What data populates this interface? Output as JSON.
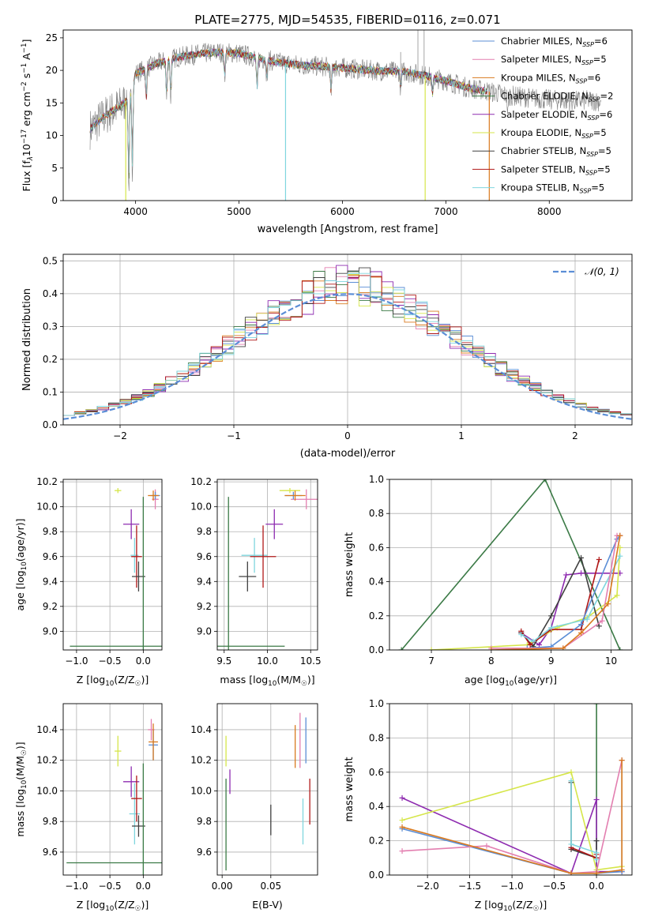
{
  "figure": {
    "title": "PLATE=2775, MJD=54535, FIBERID=0116, z=0.071"
  },
  "colors": {
    "Chabrier MILES": "#5b8ed6",
    "Salpeter MILES": "#e37fb0",
    "Kroupa MILES": "#d97a1f",
    "Chabrier ELODIE": "#3b7a46",
    "Salpeter ELODIE": "#8e2bb0",
    "Kroupa ELODIE": "#d6e64a",
    "Chabrier STELIB": "#404040",
    "Salpeter STELIB": "#b01818",
    "Kroupa STELIB": "#7fd6de",
    "data": "#808080",
    "gauss": "#5b8ed6"
  },
  "chart_data": [
    {
      "id": "spectrum",
      "type": "line",
      "title": "",
      "xlabel": "wavelength [Angstrom, rest frame]",
      "ylabel": "Flux [f",
      "ylabel_sub": "λ",
      "ylabel_rest": "10",
      "ylabel_sup1": "−17",
      "ylabel_rest2": " erg cm",
      "ylabel_sup2": "−2",
      "ylabel_rest3": " s",
      "ylabel_sup3": "−1",
      "ylabel_rest4": " A",
      "ylabel_sup4": "−1",
      "ylabel_end": "]",
      "xlim": [
        3300,
        8800
      ],
      "ylim": [
        0,
        26.2
      ],
      "xticks": [
        4000,
        5000,
        6000,
        7000,
        8000
      ],
      "yticks": [
        0,
        5,
        10,
        15,
        20,
        25
      ],
      "grid": false,
      "legend_placement": "top-right",
      "legend": [
        {
          "name": "Chabrier MILES",
          "label": "Chabrier MILES, N",
          "n": "=6"
        },
        {
          "name": "Salpeter MILES",
          "label": "Salpeter MILES, N",
          "n": "=5"
        },
        {
          "name": "Kroupa MILES",
          "label": "Kroupa MILES, N",
          "n": "=6"
        },
        {
          "name": "Chabrier ELODIE",
          "label": "Chabrier ELODIE, N",
          "n": "=2"
        },
        {
          "name": "Salpeter ELODIE",
          "label": "Salpeter ELODIE, N",
          "n": "=6"
        },
        {
          "name": "Kroupa ELODIE",
          "label": "Kroupa ELODIE, N",
          "n": "=5"
        },
        {
          "name": "Chabrier STELIB",
          "label": "Chabrier STELIB, N",
          "n": "=5"
        },
        {
          "name": "Salpeter STELIB",
          "label": "Salpeter STELIB, N",
          "n": "=5"
        },
        {
          "name": "Kroupa STELIB",
          "label": "Kroupa STELIB, N",
          "n": "=5"
        }
      ],
      "legend_sub": "SSP",
      "continuum": [
        [
          3560,
          11
        ],
        [
          3700,
          13
        ],
        [
          3850,
          14.5
        ],
        [
          3950,
          16
        ],
        [
          4000,
          19.5
        ],
        [
          4200,
          21
        ],
        [
          4400,
          22
        ],
        [
          4600,
          22.5
        ],
        [
          4800,
          22.8
        ],
        [
          5000,
          22.6
        ],
        [
          5200,
          21.8
        ],
        [
          5400,
          21.2
        ],
        [
          5600,
          20.8
        ],
        [
          5800,
          20.6
        ],
        [
          6000,
          20.4
        ],
        [
          6200,
          20.1
        ],
        [
          6400,
          19.9
        ],
        [
          6600,
          19.8
        ],
        [
          6800,
          19.2
        ],
        [
          7000,
          18.4
        ],
        [
          7200,
          17.4
        ],
        [
          7400,
          16.8
        ],
        [
          7600,
          16.2
        ],
        [
          7800,
          15.8
        ],
        [
          8000,
          15.5
        ],
        [
          8200,
          15.3
        ],
        [
          8400,
          15.4
        ],
        [
          8500,
          15.2
        ]
      ],
      "absorptions": [
        [
          3934,
          14
        ],
        [
          3969,
          13
        ],
        [
          4102,
          5
        ],
        [
          4300,
          6
        ],
        [
          4340,
          6
        ],
        [
          4861,
          4
        ],
        [
          5175,
          5
        ],
        [
          5270,
          3
        ],
        [
          5890,
          4
        ],
        [
          6563,
          2.5
        ],
        [
          6870,
          3
        ],
        [
          7600,
          3
        ]
      ],
      "drop_lines": [
        {
          "name": "Kroupa ELODIE",
          "x": 3905
        },
        {
          "name": "Kroupa STELIB",
          "x": 5450
        },
        {
          "name": "Kroupa ELODIE",
          "x": 6800
        },
        {
          "name": "Kroupa MILES",
          "x": 7420
        }
      ]
    },
    {
      "id": "residuals",
      "type": "line",
      "xlabel": "(data-model)/error",
      "ylabel": "Normed distribution",
      "xlim": [
        -2.5,
        2.5
      ],
      "ylim": [
        0,
        0.52
      ],
      "xticks": [
        -2,
        -1,
        0,
        1,
        2
      ],
      "yticks": [
        0.0,
        0.1,
        0.2,
        0.3,
        0.4,
        0.5
      ],
      "grid": true,
      "legend_placement": "top-right",
      "legend_label": "𝒩(0, 1)",
      "bin_width": 0.1
    },
    {
      "id": "age-vs-Z",
      "type": "scatter",
      "xlabel": "Z [log",
      "xlabel_sub": "10",
      "xlabel_rest": "(Z/Z",
      "xlabel_sub2": "☉",
      "xlabel_end": ")]",
      "ylabel": "age  [log",
      "ylabel_sub": "10",
      "ylabel_rest": "(age/yr)]",
      "xlim": [
        -1.2,
        0.28
      ],
      "ylim": [
        8.85,
        10.22
      ],
      "xticks": [
        -1.0,
        -0.5,
        0.0
      ],
      "yticks": [
        9.0,
        9.2,
        9.4,
        9.6,
        9.8,
        10.0,
        10.2
      ],
      "grid": true,
      "points": [
        {
          "name": "Kroupa ELODIE",
          "x": -0.38,
          "y": 10.13,
          "xerr": 0.05,
          "yerr": 0.02
        },
        {
          "name": "Salpeter ELODIE",
          "x": -0.18,
          "y": 9.86,
          "xerr": 0.12,
          "yerr": 0.12
        },
        {
          "name": "Kroupa STELIB",
          "x": -0.13,
          "y": 9.61,
          "xerr": 0.06,
          "yerr": 0.14
        },
        {
          "name": "Salpeter STELIB",
          "x": -0.1,
          "y": 9.6,
          "xerr": 0.08,
          "yerr": 0.25
        },
        {
          "name": "Chabrier STELIB",
          "x": -0.07,
          "y": 9.44,
          "xerr": 0.1,
          "yerr": 0.12
        },
        {
          "name": "Chabrier ELODIE",
          "x": 0.0,
          "y": 8.88,
          "xerr": 1.1,
          "yerr": 1.2
        },
        {
          "name": "Salpeter MILES",
          "x": 0.18,
          "y": 10.06,
          "xerr": 0.05,
          "yerr": 0.08
        },
        {
          "name": "Chabrier MILES",
          "x": 0.18,
          "y": 10.09,
          "xerr": 0.07,
          "yerr": 0.03
        },
        {
          "name": "Kroupa MILES",
          "x": 0.15,
          "y": 10.09,
          "xerr": 0.08,
          "yerr": 0.04
        }
      ]
    },
    {
      "id": "age-vs-mass",
      "type": "scatter",
      "xlabel": "mass [log",
      "xlabel_sub": "10",
      "xlabel_rest": "(M/M",
      "xlabel_sub2": "☉",
      "xlabel_end": ")]",
      "xlim": [
        9.42,
        10.58
      ],
      "ylim": [
        8.85,
        10.22
      ],
      "xticks": [
        9.5,
        10.0,
        10.5
      ],
      "yticks": [
        9.0,
        9.2,
        9.4,
        9.6,
        9.8,
        10.0,
        10.2
      ],
      "grid": true,
      "points": [
        {
          "name": "Kroupa ELODIE",
          "x": 10.26,
          "y": 10.13,
          "xerr": 0.12,
          "yerr": 0.02
        },
        {
          "name": "Salpeter ELODIE",
          "x": 10.08,
          "y": 9.86,
          "xerr": 0.1,
          "yerr": 0.12
        },
        {
          "name": "Kroupa STELIB",
          "x": 9.85,
          "y": 9.61,
          "xerr": 0.15,
          "yerr": 0.14
        },
        {
          "name": "Salpeter STELIB",
          "x": 9.95,
          "y": 9.6,
          "xerr": 0.15,
          "yerr": 0.25
        },
        {
          "name": "Chabrier STELIB",
          "x": 9.77,
          "y": 9.44,
          "xerr": 0.1,
          "yerr": 0.12
        },
        {
          "name": "Chabrier ELODIE",
          "x": 9.55,
          "y": 8.88,
          "xerr": 0.65,
          "yerr": 1.2
        },
        {
          "name": "Salpeter MILES",
          "x": 10.45,
          "y": 10.06,
          "xerr": 0.18,
          "yerr": 0.08
        },
        {
          "name": "Chabrier MILES",
          "x": 10.3,
          "y": 10.09,
          "xerr": 0.1,
          "yerr": 0.03
        },
        {
          "name": "Kroupa MILES",
          "x": 10.32,
          "y": 10.09,
          "xerr": 0.12,
          "yerr": 0.04
        }
      ]
    },
    {
      "id": "weight-vs-age",
      "type": "line",
      "xlabel": "age  [log",
      "xlabel_sub": "10",
      "xlabel_rest": "(age/yr)]",
      "ylabel": "mass weight",
      "xlim": [
        6.3,
        10.35
      ],
      "ylim": [
        0,
        1.0
      ],
      "xticks": [
        7,
        8,
        9,
        10
      ],
      "yticks": [
        0.0,
        0.2,
        0.4,
        0.6,
        0.8,
        1.0
      ],
      "grid": true,
      "series": [
        {
          "name": "Chabrier ELODIE",
          "x": [
            6.5,
            8.9,
            10.15
          ],
          "y": [
            0.0,
            1.0,
            0.0
          ]
        },
        {
          "name": "Salpeter ELODIE",
          "x": [
            8.5,
            8.8,
            9.0,
            9.25,
            9.5,
            10.15
          ],
          "y": [
            0.1,
            0.03,
            0.13,
            0.44,
            0.45,
            0.45
          ]
        },
        {
          "name": "Kroupa ELODIE",
          "x": [
            7.0,
            8.6,
            9.1,
            9.6,
            10.1,
            10.15
          ],
          "y": [
            0.0,
            0.03,
            0.13,
            0.19,
            0.32,
            0.6
          ]
        },
        {
          "name": "Chabrier STELIB",
          "x": [
            8.5,
            8.7,
            9.0,
            9.5,
            9.8
          ],
          "y": [
            0.1,
            0.02,
            0.2,
            0.54,
            0.14
          ]
        },
        {
          "name": "Salpeter STELIB",
          "x": [
            8.5,
            8.65,
            9.0,
            9.5,
            9.8
          ],
          "y": [
            0.11,
            0.03,
            0.12,
            0.12,
            0.53
          ]
        },
        {
          "name": "Kroupa STELIB",
          "x": [
            8.5,
            8.7,
            9.0,
            9.6,
            10.15
          ],
          "y": [
            0.09,
            0.05,
            0.13,
            0.18,
            0.55
          ]
        },
        {
          "name": "Chabrier MILES",
          "x": [
            8.6,
            9.0,
            9.5,
            10.1,
            10.15
          ],
          "y": [
            0.01,
            0.02,
            0.15,
            0.65,
            0.67
          ]
        },
        {
          "name": "Salpeter MILES",
          "x": [
            8.0,
            9.2,
            9.85,
            10.1,
            10.15
          ],
          "y": [
            0.01,
            0.01,
            0.17,
            0.67,
            0.67
          ]
        },
        {
          "name": "Kroupa MILES",
          "x": [
            8.0,
            9.2,
            9.5,
            9.95,
            10.15
          ],
          "y": [
            0.0,
            0.01,
            0.1,
            0.27,
            0.67
          ]
        }
      ]
    },
    {
      "id": "mass-vs-Z",
      "type": "scatter",
      "xlabel": "Z [log",
      "xlabel_sub": "10",
      "xlabel_rest": "(Z/Z",
      "xlabel_sub2": "☉",
      "xlabel_end": ")]",
      "ylabel": "mass [log",
      "ylabel_sub": "10",
      "ylabel_rest": "(M/M",
      "ylabel_sub2": "☉",
      "ylabel_end": ")]",
      "xlim": [
        -1.2,
        0.28
      ],
      "ylim": [
        9.45,
        10.57
      ],
      "xticks": [
        -1.0,
        -0.5,
        0.0
      ],
      "yticks": [
        9.6,
        9.8,
        10.0,
        10.2,
        10.4
      ],
      "grid": true,
      "points": [
        {
          "name": "Kroupa ELODIE",
          "x": -0.38,
          "y": 10.26,
          "xerr": 0.05,
          "yerr": 0.1
        },
        {
          "name": "Salpeter ELODIE",
          "x": -0.18,
          "y": 10.06,
          "xerr": 0.12,
          "yerr": 0.1
        },
        {
          "name": "Kroupa STELIB",
          "x": -0.13,
          "y": 9.85,
          "xerr": 0.08,
          "yerr": 0.2
        },
        {
          "name": "Salpeter STELIB",
          "x": -0.1,
          "y": 9.95,
          "xerr": 0.08,
          "yerr": 0.15
        },
        {
          "name": "Chabrier STELIB",
          "x": -0.07,
          "y": 9.77,
          "xerr": 0.1,
          "yerr": 0.07
        },
        {
          "name": "Chabrier ELODIE",
          "x": 0.0,
          "y": 9.53,
          "xerr": 1.15,
          "yerr": 0.65
        },
        {
          "name": "Salpeter MILES",
          "x": 0.12,
          "y": 10.4,
          "xerr": 0.05,
          "yerr": 0.07
        },
        {
          "name": "Chabrier MILES",
          "x": 0.15,
          "y": 10.3,
          "xerr": 0.07,
          "yerr": 0.1
        },
        {
          "name": "Kroupa MILES",
          "x": 0.15,
          "y": 10.32,
          "xerr": 0.07,
          "yerr": 0.12
        }
      ]
    },
    {
      "id": "mass-vs-ebv",
      "type": "scatter",
      "xlabel": "E(B-V)",
      "xlim": [
        -0.005,
        0.098
      ],
      "ylim": [
        9.45,
        10.57
      ],
      "xticks": [
        0.0,
        0.05
      ],
      "yticks": [
        9.6,
        9.8,
        10.0,
        10.2,
        10.4
      ],
      "grid": true,
      "points": [
        {
          "name": "Kroupa ELODIE",
          "x": 0.004,
          "y": 10.26,
          "xerr": 0.0,
          "yerr": 0.1
        },
        {
          "name": "Salpeter ELODIE",
          "x": 0.008,
          "y": 10.06,
          "xerr": 0.0,
          "yerr": 0.08
        },
        {
          "name": "Chabrier ELODIE",
          "x": 0.004,
          "y": 9.78,
          "xerr": 0.0,
          "yerr": 0.3
        },
        {
          "name": "Chabrier STELIB",
          "x": 0.05,
          "y": 9.81,
          "xerr": 0.0,
          "yerr": 0.1
        },
        {
          "name": "Kroupa MILES",
          "x": 0.075,
          "y": 10.29,
          "xerr": 0.0,
          "yerr": 0.14
        },
        {
          "name": "Salpeter MILES",
          "x": 0.08,
          "y": 10.33,
          "xerr": 0.0,
          "yerr": 0.18
        },
        {
          "name": "Chabrier MILES",
          "x": 0.086,
          "y": 10.33,
          "xerr": 0.0,
          "yerr": 0.15
        },
        {
          "name": "Kroupa STELIB",
          "x": 0.083,
          "y": 9.8,
          "xerr": 0.0,
          "yerr": 0.15
        },
        {
          "name": "Salpeter STELIB",
          "x": 0.09,
          "y": 9.93,
          "xerr": 0.0,
          "yerr": 0.15
        }
      ]
    },
    {
      "id": "weight-vs-Z",
      "type": "line",
      "xlabel": "Z [log",
      "xlabel_sub": "10",
      "xlabel_rest": "(Z/Z",
      "xlabel_sub2": "☉",
      "xlabel_end": ")]",
      "ylabel": "mass weight",
      "xlim": [
        -2.45,
        0.42
      ],
      "ylim": [
        0,
        1.0
      ],
      "xticks": [
        -2.0,
        -1.5,
        -1.0,
        -0.5,
        0.0
      ],
      "yticks": [
        0.0,
        0.2,
        0.4,
        0.6,
        0.8,
        1.0
      ],
      "grid": true,
      "series": [
        {
          "name": "Chabrier ELODIE",
          "x": [
            0.0,
            0.0
          ],
          "y": [
            1.0,
            0.0
          ]
        },
        {
          "name": "Salpeter ELODIE",
          "x": [
            -2.3,
            -0.3,
            0.0,
            0.0,
            0.3
          ],
          "y": [
            0.45,
            0.01,
            0.44,
            0.02,
            0.02
          ]
        },
        {
          "name": "Kroupa ELODIE",
          "x": [
            -2.3,
            -0.3,
            0.0,
            0.3
          ],
          "y": [
            0.32,
            0.6,
            0.03,
            0.05
          ]
        },
        {
          "name": "Chabrier STELIB",
          "x": [
            -0.3,
            -0.3,
            0.0,
            0.0
          ],
          "y": [
            0.54,
            0.15,
            0.1,
            0.2
          ]
        },
        {
          "name": "Salpeter STELIB",
          "x": [
            -0.3,
            0.0,
            0.0
          ],
          "y": [
            0.16,
            0.1,
            0.12
          ]
        },
        {
          "name": "Kroupa STELIB",
          "x": [
            -0.3,
            -0.3,
            0.0,
            0.0
          ],
          "y": [
            0.55,
            0.18,
            0.13,
            0.09
          ]
        },
        {
          "name": "Chabrier MILES",
          "x": [
            -2.3,
            -0.3,
            0.0,
            0.3,
            0.3
          ],
          "y": [
            0.27,
            0.01,
            0.01,
            0.02,
            0.67
          ]
        },
        {
          "name": "Salpeter MILES",
          "x": [
            -2.3,
            -1.3,
            -0.3,
            0.0,
            0.3
          ],
          "y": [
            0.14,
            0.17,
            0.01,
            0.02,
            0.67
          ]
        },
        {
          "name": "Kroupa MILES",
          "x": [
            -2.3,
            -0.3,
            0.0,
            0.3,
            0.3
          ],
          "y": [
            0.28,
            0.01,
            0.01,
            0.03,
            0.67
          ]
        }
      ]
    }
  ]
}
